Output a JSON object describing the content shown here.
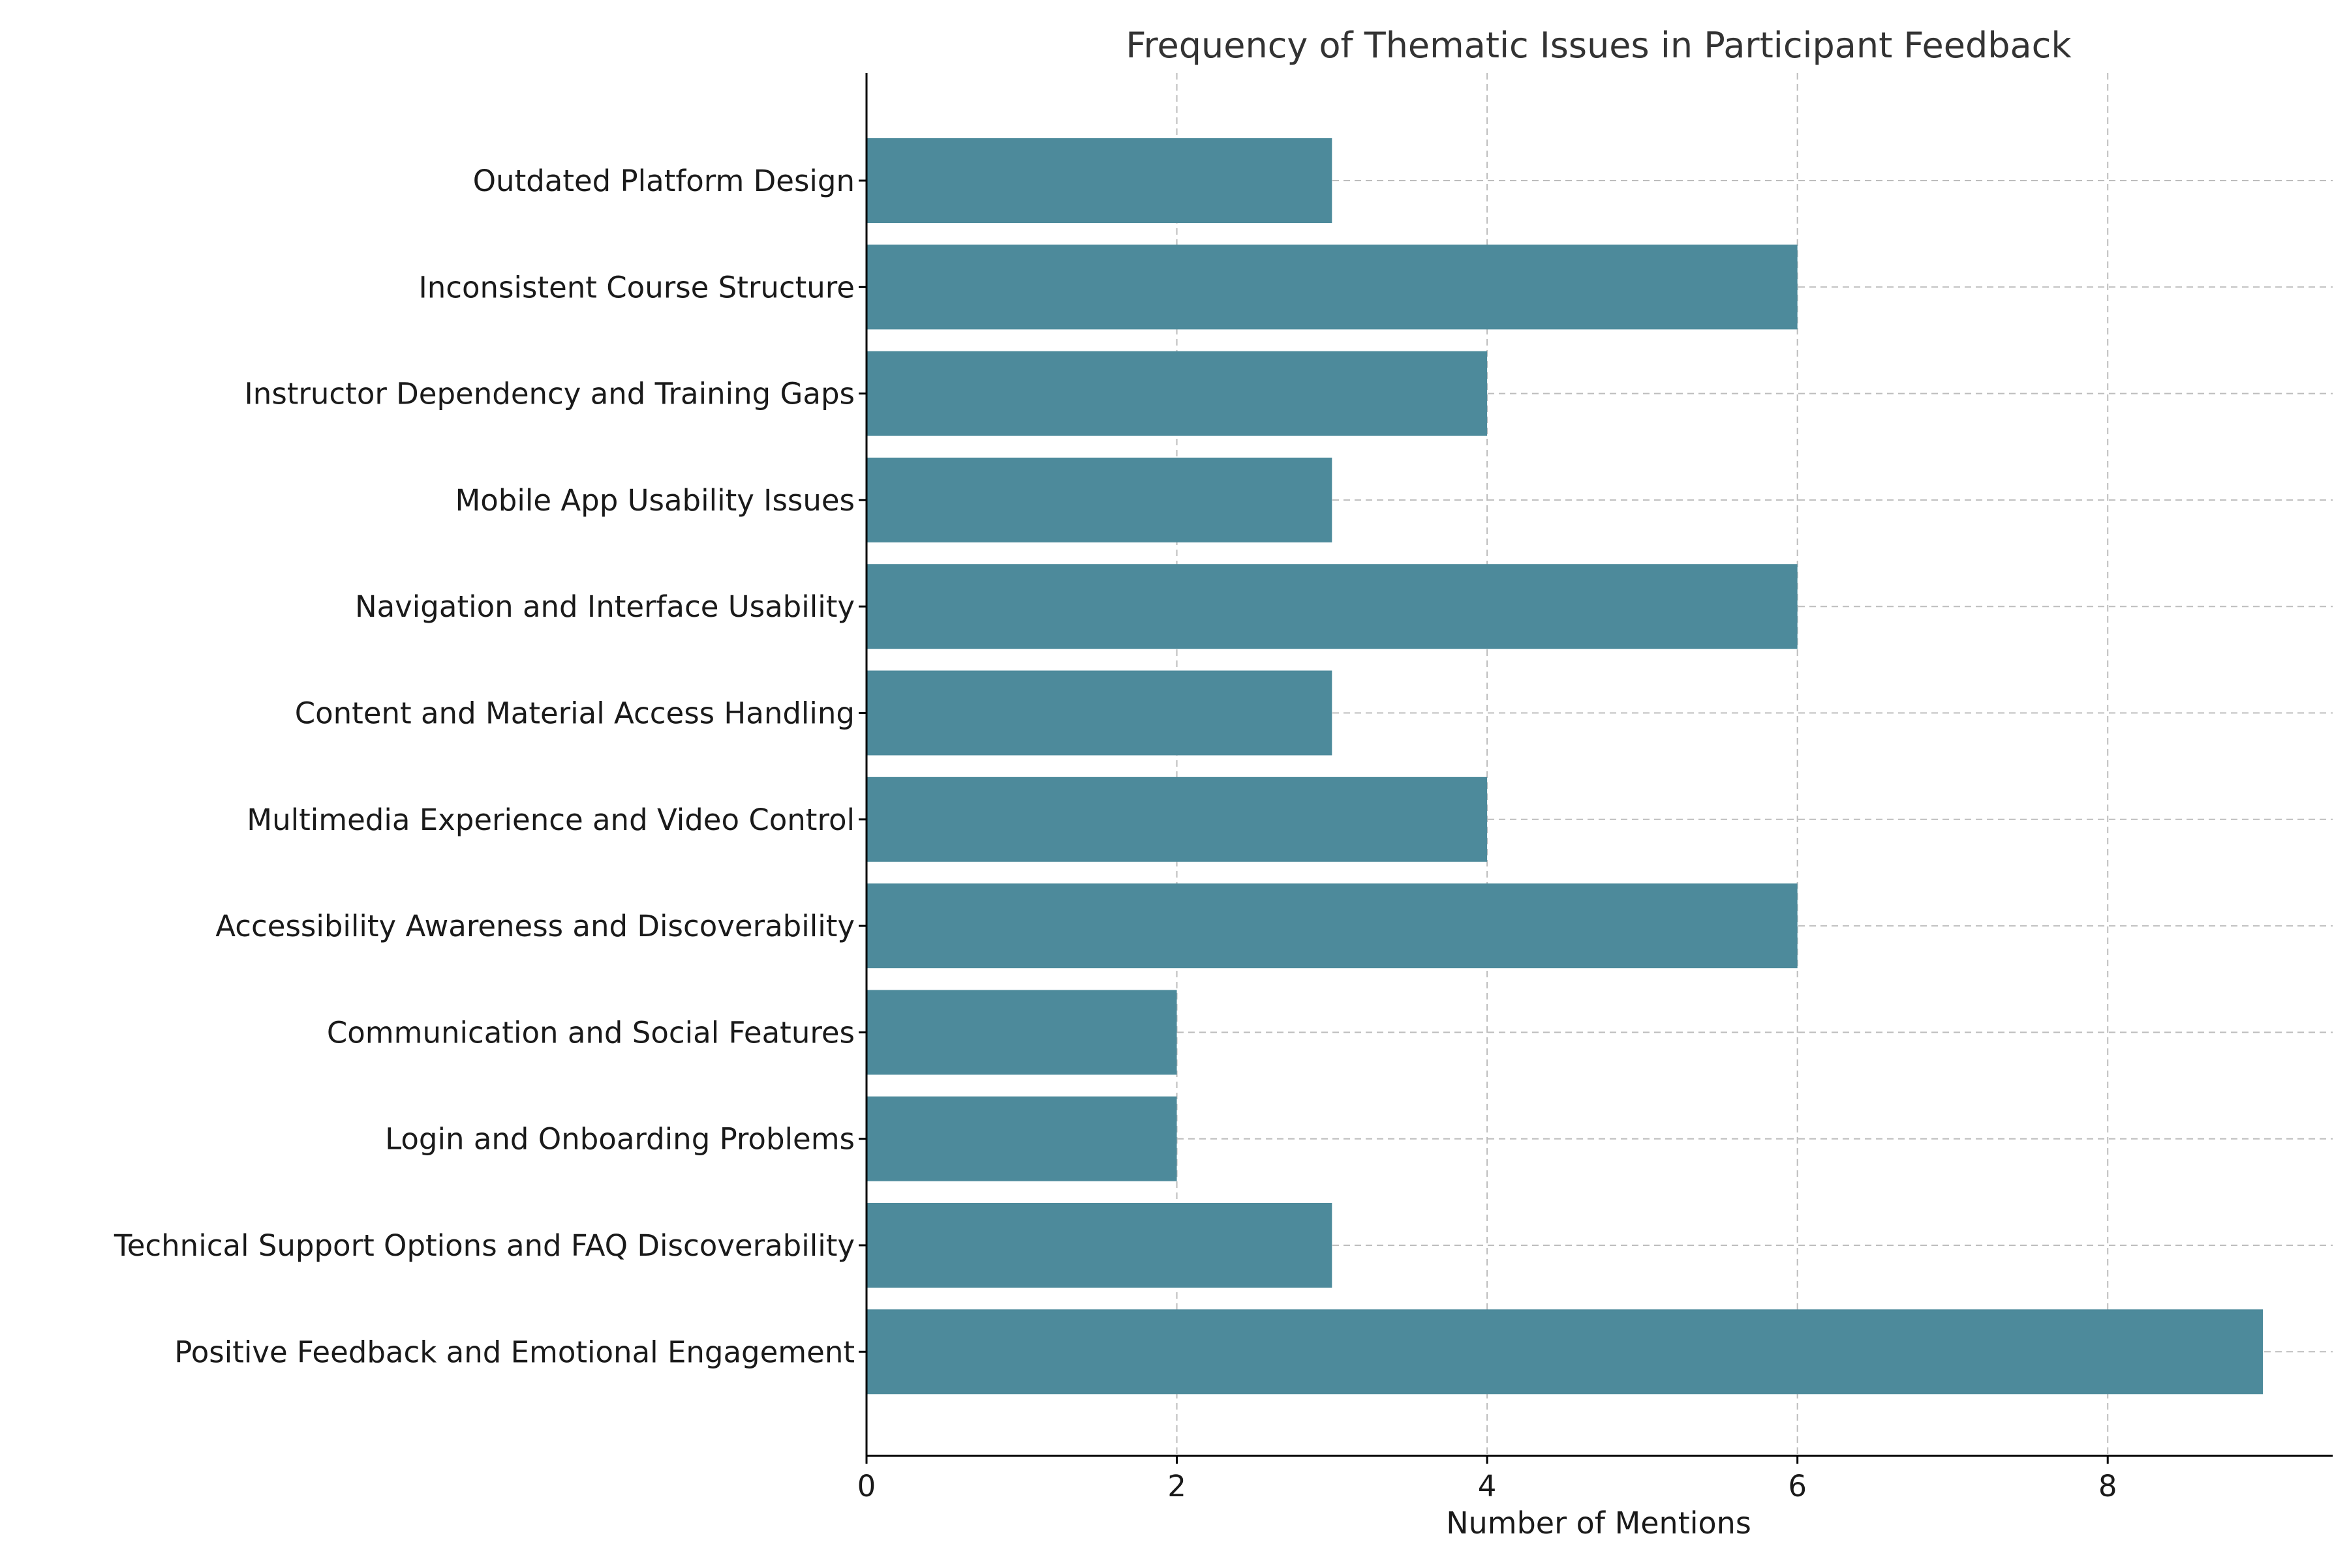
{
  "chart_data": {
    "type": "bar",
    "orientation": "horizontal",
    "title": "Frequency of Thematic Issues in Participant Feedback",
    "xlabel": "Number of Mentions",
    "ylabel": "",
    "xlim": [
      0,
      9.45
    ],
    "x_ticks": [
      0,
      2,
      4,
      6,
      8
    ],
    "categories": [
      "Outdated Platform Design",
      "Inconsistent Course Structure",
      "Instructor Dependency and Training Gaps",
      "Mobile App Usability Issues",
      "Navigation and Interface Usability",
      "Content and Material Access Handling",
      "Multimedia Experience and Video Control",
      "Accessibility Awareness and Discoverability",
      "Communication and Social Features",
      "Login and Onboarding Problems",
      "Technical Support Options and FAQ Discoverability",
      "Positive Feedback and Emotional Engagement"
    ],
    "values": [
      3,
      6,
      4,
      3,
      6,
      3,
      4,
      6,
      2,
      2,
      3,
      9
    ],
    "bar_color": "#4d8a9b",
    "grid": true,
    "grid_style": "dashed"
  }
}
